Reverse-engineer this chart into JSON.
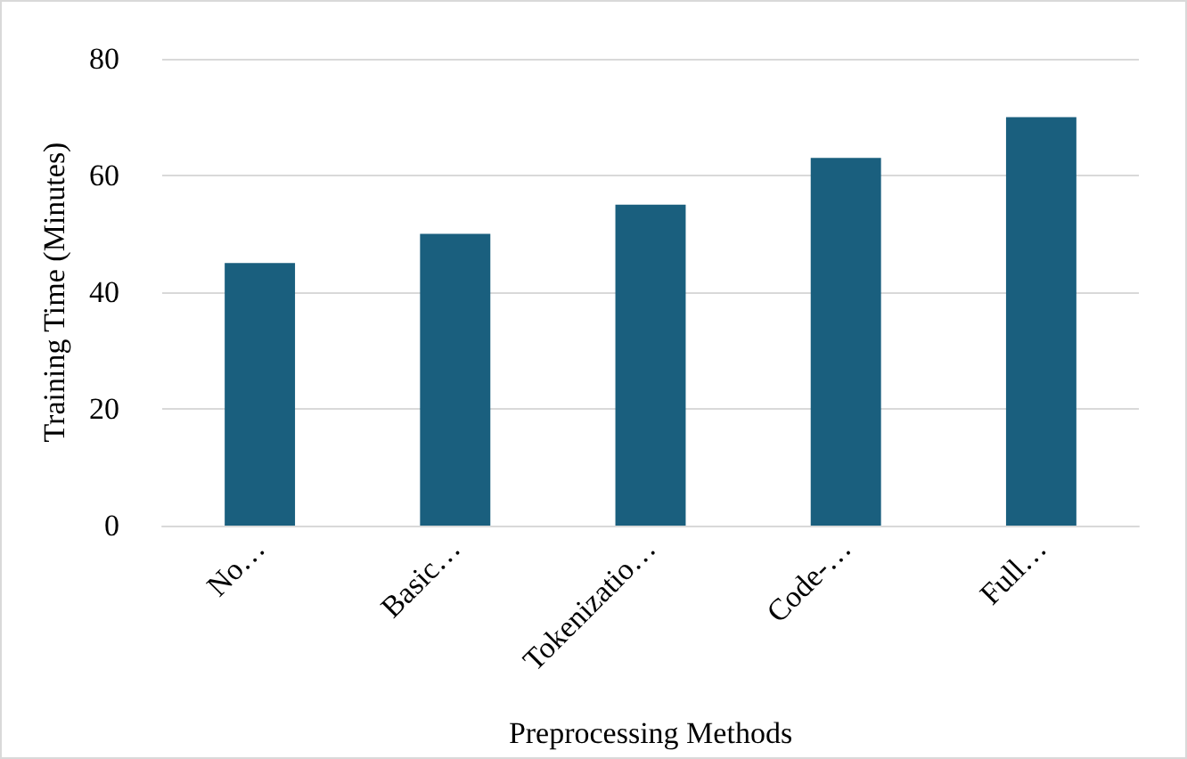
{
  "chart_data": {
    "type": "bar",
    "xlabel": "Preprocessing Methods",
    "ylabel": "Training Time (Minutes)",
    "categories": [
      "No…",
      "Basic…",
      "Tokenizatio…",
      "Code-…",
      "Full…"
    ],
    "values": [
      45,
      50,
      55,
      63,
      70
    ],
    "color": "#1a5f7e",
    "ylim": [
      0,
      80
    ],
    "yticks": [
      0,
      20,
      40,
      60,
      80
    ],
    "grid": "y"
  }
}
